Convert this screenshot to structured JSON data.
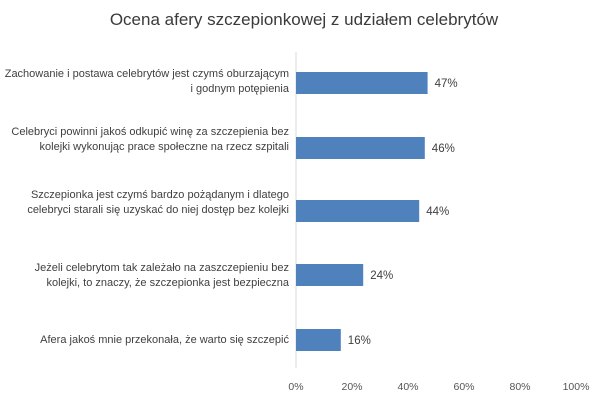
{
  "chart_data": {
    "type": "bar",
    "orientation": "horizontal",
    "title": "Ocena afery szczepionkowej z udziałem celebrytów",
    "categories": [
      "Zachowanie i postawa celebrytów jest czymś oburzającym i godnym potępienia",
      "Celebryci powinni jakoś odkupić winę za szczepienia bez kolejki wykonując prace społeczne na rzecz szpitali",
      "Szczepionka jest czymś bardzo pożądanym i dlatego celebryci starali się uzyskać do niej dostęp bez kolejki",
      "Jeżeli celebrytom tak zależało na zaszczepieniu bez kolejki, to znaczy, że szczepionka jest bezpieczna",
      "Afera jakoś mnie przekonała, że warto się szczepić"
    ],
    "values": [
      47,
      46,
      44,
      24,
      16
    ],
    "value_labels": [
      "47%",
      "46%",
      "44%",
      "24%",
      "16%"
    ],
    "xlim": [
      0,
      100
    ],
    "xticks": [
      0,
      20,
      40,
      60,
      80,
      100
    ],
    "xtick_labels": [
      "0%",
      "20%",
      "40%",
      "60%",
      "80%",
      "100%"
    ],
    "grid": false,
    "legend": "none",
    "bar_color": "#4f81bd"
  }
}
